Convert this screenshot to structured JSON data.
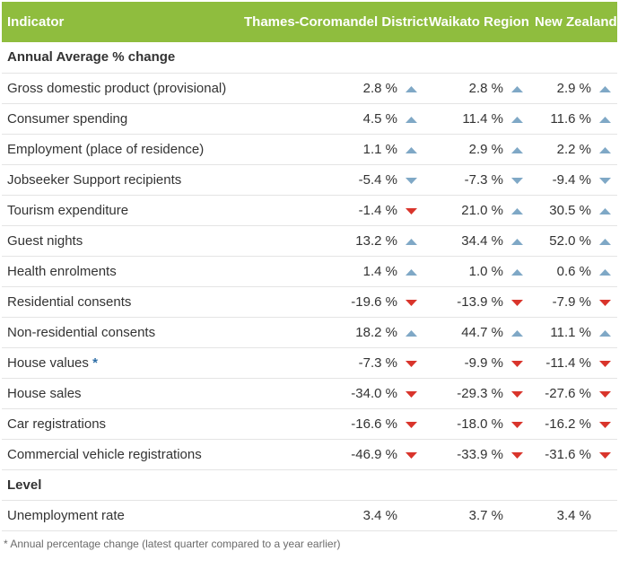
{
  "headers": [
    "Indicator",
    "Thames-Coromandel District",
    "Waikato Region",
    "New Zealand"
  ],
  "sections": [
    {
      "title": "Annual Average % change",
      "rows": [
        {
          "label": "Gross domestic product (provisional)",
          "star": "",
          "values": [
            "2.8 %",
            "2.8 %",
            "2.9 %"
          ],
          "trends": [
            "up",
            "up",
            "up"
          ]
        },
        {
          "label": "Consumer spending",
          "star": "",
          "values": [
            "4.5 %",
            "11.4 %",
            "11.6 %"
          ],
          "trends": [
            "up",
            "up",
            "up"
          ]
        },
        {
          "label": "Employment (place of residence)",
          "star": "",
          "values": [
            "1.1 %",
            "2.9 %",
            "2.2 %"
          ],
          "trends": [
            "up",
            "up",
            "up"
          ]
        },
        {
          "label": "Jobseeker Support recipients",
          "star": "",
          "values": [
            "-5.4 %",
            "-7.3 %",
            "-9.4 %"
          ],
          "trends": [
            "down-good",
            "down-good",
            "down-good"
          ]
        },
        {
          "label": "Tourism expenditure",
          "star": "",
          "values": [
            "-1.4 %",
            "21.0 %",
            "30.5 %"
          ],
          "trends": [
            "down",
            "up",
            "up"
          ]
        },
        {
          "label": "Guest nights",
          "star": "",
          "values": [
            "13.2 %",
            "34.4 %",
            "52.0 %"
          ],
          "trends": [
            "up",
            "up",
            "up"
          ]
        },
        {
          "label": "Health enrolments",
          "star": "",
          "values": [
            "1.4 %",
            "1.0 %",
            "0.6 %"
          ],
          "trends": [
            "up",
            "up",
            "up"
          ]
        },
        {
          "label": "Residential consents",
          "star": "",
          "values": [
            "-19.6 %",
            "-13.9 %",
            "-7.9 %"
          ],
          "trends": [
            "down",
            "down",
            "down"
          ]
        },
        {
          "label": "Non-residential consents",
          "star": "",
          "values": [
            "18.2 %",
            "44.7 %",
            "11.1 %"
          ],
          "trends": [
            "up",
            "up",
            "up"
          ]
        },
        {
          "label": "House values",
          "star": "*",
          "values": [
            "-7.3 %",
            "-9.9 %",
            "-11.4 %"
          ],
          "trends": [
            "down",
            "down",
            "down"
          ]
        },
        {
          "label": "House sales",
          "star": "",
          "values": [
            "-34.0 %",
            "-29.3 %",
            "-27.6 %"
          ],
          "trends": [
            "down",
            "down",
            "down"
          ]
        },
        {
          "label": "Car registrations",
          "star": "",
          "values": [
            "-16.6 %",
            "-18.0 %",
            "-16.2 %"
          ],
          "trends": [
            "down",
            "down",
            "down"
          ]
        },
        {
          "label": "Commercial vehicle registrations",
          "star": "",
          "values": [
            "-46.9 %",
            "-33.9 %",
            "-31.6 %"
          ],
          "trends": [
            "down",
            "down",
            "down"
          ]
        }
      ]
    },
    {
      "title": "Level",
      "rows": [
        {
          "label": "Unemployment rate",
          "star": "",
          "values": [
            "3.4 %",
            "3.7 %",
            "3.4 %"
          ],
          "trends": [
            "none",
            "none",
            "none"
          ]
        }
      ]
    }
  ],
  "footnote": "* Annual percentage change (latest quarter compared to a year earlier)",
  "colors": {
    "header_bg": "#8fbd3e",
    "up": "#7fa8c6",
    "down_good": "#7fa8c6",
    "down": "#d9342b",
    "star": "#2e6ea6"
  },
  "icons": {
    "up": "triangle-up-icon",
    "down": "triangle-down-icon"
  }
}
